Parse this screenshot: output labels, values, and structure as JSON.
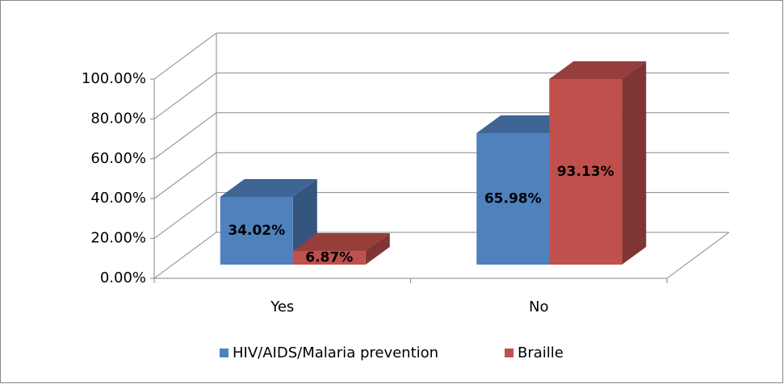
{
  "chart_data": {
    "type": "bar3d",
    "categories": [
      "Yes",
      "No"
    ],
    "series": [
      {
        "name": "HIV/AIDS/Malaria prevention",
        "color": "#4f81bd",
        "values": [
          34.02,
          65.98
        ],
        "value_labels": [
          "34.02%",
          "65.98%"
        ]
      },
      {
        "name": "Braille",
        "color": "#c0504d",
        "values": [
          6.87,
          93.13
        ],
        "value_labels": [
          "6.87%",
          "93.13%"
        ]
      }
    ],
    "ylim": [
      0,
      100
    ],
    "yticks": [
      {
        "value": 0,
        "label": "0.00%"
      },
      {
        "value": 20,
        "label": "20.00%"
      },
      {
        "value": 40,
        "label": "40.00%"
      },
      {
        "value": 60,
        "label": "60.00%"
      },
      {
        "value": 80,
        "label": "80.00%"
      },
      {
        "value": 100,
        "label": "100.00%"
      }
    ],
    "grid": true,
    "legend": "bottom"
  }
}
